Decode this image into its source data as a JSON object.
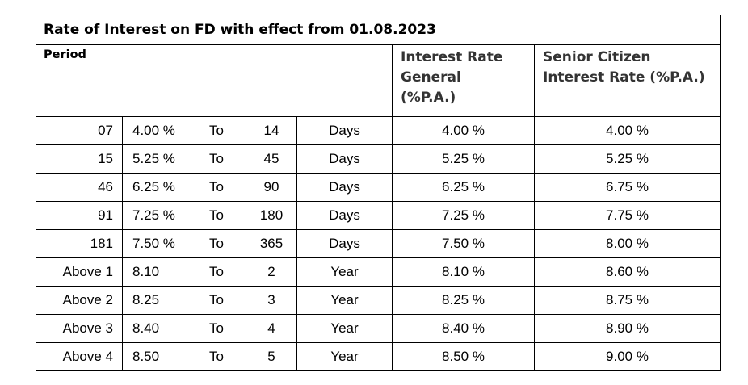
{
  "title": "Rate of Interest on FD with effect from 01.08.2023",
  "headers": {
    "period": "Period",
    "general_line1": "Interest Rate",
    "general_line2": "General",
    "general_line3": "(%P.A.)",
    "senior_line1": "Senior Citizen",
    "senior_line2": "Interest Rate (%P.A.)"
  },
  "rows": [
    {
      "from": "07",
      "rate": "4.00 %",
      "to": "To",
      "upto": "14",
      "unit": "Days",
      "general": "4.00 %",
      "senior": "4.00 %"
    },
    {
      "from": "15",
      "rate": "5.25 %",
      "to": "To",
      "upto": "45",
      "unit": "Days",
      "general": "5.25 %",
      "senior": "5.25 %"
    },
    {
      "from": "46",
      "rate": "6.25 %",
      "to": "To",
      "upto": "90",
      "unit": "Days",
      "general": "6.25 %",
      "senior": "6.75 %"
    },
    {
      "from": "91",
      "rate": "7.25 %",
      "to": "To",
      "upto": "180",
      "unit": "Days",
      "general": "7.25 %",
      "senior": "7.75 %"
    },
    {
      "from": "181",
      "rate": "7.50 %",
      "to": "To",
      "upto": "365",
      "unit": "Days",
      "general": "7.50 %",
      "senior": "8.00 %"
    },
    {
      "from": "Above 1",
      "rate": "8.10",
      "to": "To",
      "upto": "2",
      "unit": "Year",
      "general": "8.10 %",
      "senior": "8.60 %"
    },
    {
      "from": "Above 2",
      "rate": "8.25",
      "to": "To",
      "upto": "3",
      "unit": "Year",
      "general": "8.25 %",
      "senior": "8.75 %"
    },
    {
      "from": "Above 3",
      "rate": "8.40",
      "to": "To",
      "upto": "4",
      "unit": "Year",
      "general": "8.40 %",
      "senior": "8.90 %"
    },
    {
      "from": "Above 4",
      "rate": "8.50",
      "to": "To",
      "upto": "5",
      "unit": "Year",
      "general": "8.50 %",
      "senior": "9.00 %"
    }
  ]
}
